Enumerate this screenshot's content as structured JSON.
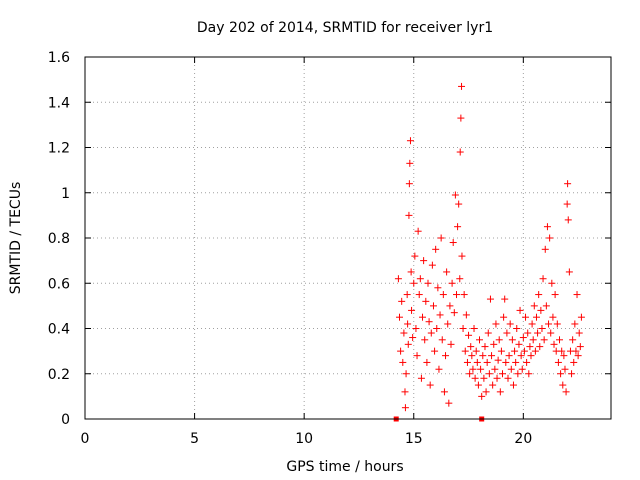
{
  "chart_data": {
    "type": "scatter",
    "title": "Day 202 of 2014, SRMTID for receiver lyr1",
    "xlabel": "GPS time / hours",
    "ylabel": "SRMTID / TECUs",
    "xlim": [
      0,
      24
    ],
    "ylim": [
      0,
      1.6
    ],
    "xticks": [
      "0",
      "5",
      "10",
      "15",
      "20"
    ],
    "yticks": [
      "0",
      "0.2",
      "0.4",
      "0.6",
      "0.8",
      "1",
      "1.2",
      "1.4",
      "1.6"
    ],
    "grid": true,
    "marker": "+",
    "color": "#ff0000",
    "gap_markers_x": [
      14.2,
      18.1
    ],
    "series": [
      {
        "name": "SRMTID",
        "points": [
          [
            14.3,
            0.62
          ],
          [
            14.35,
            0.45
          ],
          [
            14.4,
            0.3
          ],
          [
            14.45,
            0.52
          ],
          [
            14.5,
            0.25
          ],
          [
            14.55,
            0.38
          ],
          [
            14.6,
            0.12
          ],
          [
            14.62,
            0.05
          ],
          [
            14.65,
            0.2
          ],
          [
            14.7,
            0.55
          ],
          [
            14.72,
            0.42
          ],
          [
            14.75,
            0.33
          ],
          [
            14.78,
            0.9
          ],
          [
            14.8,
            1.04
          ],
          [
            14.82,
            1.13
          ],
          [
            14.85,
            1.23
          ],
          [
            14.88,
            0.65
          ],
          [
            14.9,
            0.48
          ],
          [
            14.95,
            0.36
          ],
          [
            15.0,
            0.6
          ],
          [
            15.05,
            0.72
          ],
          [
            15.1,
            0.4
          ],
          [
            15.15,
            0.28
          ],
          [
            15.2,
            0.83
          ],
          [
            15.25,
            0.55
          ],
          [
            15.3,
            0.62
          ],
          [
            15.35,
            0.18
          ],
          [
            15.4,
            0.45
          ],
          [
            15.45,
            0.7
          ],
          [
            15.5,
            0.35
          ],
          [
            15.55,
            0.52
          ],
          [
            15.6,
            0.25
          ],
          [
            15.65,
            0.6
          ],
          [
            15.7,
            0.43
          ],
          [
            15.75,
            0.15
          ],
          [
            15.8,
            0.38
          ],
          [
            15.85,
            0.68
          ],
          [
            15.9,
            0.5
          ],
          [
            15.95,
            0.3
          ],
          [
            16.0,
            0.75
          ],
          [
            16.05,
            0.4
          ],
          [
            16.1,
            0.58
          ],
          [
            16.15,
            0.22
          ],
          [
            16.2,
            0.46
          ],
          [
            16.25,
            0.8
          ],
          [
            16.3,
            0.35
          ],
          [
            16.35,
            0.55
          ],
          [
            16.4,
            0.12
          ],
          [
            16.45,
            0.28
          ],
          [
            16.5,
            0.65
          ],
          [
            16.55,
            0.42
          ],
          [
            16.6,
            0.07
          ],
          [
            16.65,
            0.5
          ],
          [
            16.7,
            0.33
          ],
          [
            16.75,
            0.6
          ],
          [
            16.8,
            0.78
          ],
          [
            16.85,
            0.47
          ],
          [
            16.9,
            0.99
          ],
          [
            16.95,
            0.55
          ],
          [
            17.0,
            0.85
          ],
          [
            17.05,
            0.95
          ],
          [
            17.1,
            0.62
          ],
          [
            17.12,
            1.18
          ],
          [
            17.15,
            1.33
          ],
          [
            17.18,
            1.47
          ],
          [
            17.2,
            0.72
          ],
          [
            17.25,
            0.4
          ],
          [
            17.3,
            0.55
          ],
          [
            17.35,
            0.3
          ],
          [
            17.4,
            0.46
          ],
          [
            17.45,
            0.25
          ],
          [
            17.5,
            0.37
          ],
          [
            17.55,
            0.2
          ],
          [
            17.6,
            0.32
          ],
          [
            17.65,
            0.28
          ],
          [
            17.7,
            0.22
          ],
          [
            17.75,
            0.4
          ],
          [
            17.8,
            0.18
          ],
          [
            17.85,
            0.3
          ],
          [
            17.9,
            0.25
          ],
          [
            17.95,
            0.15
          ],
          [
            18.0,
            0.35
          ],
          [
            18.05,
            0.22
          ],
          [
            18.1,
            0.1
          ],
          [
            18.15,
            0.28
          ],
          [
            18.2,
            0.18
          ],
          [
            18.25,
            0.32
          ],
          [
            18.3,
            0.12
          ],
          [
            18.35,
            0.25
          ],
          [
            18.4,
            0.38
          ],
          [
            18.45,
            0.2
          ],
          [
            18.5,
            0.53
          ],
          [
            18.55,
            0.28
          ],
          [
            18.6,
            0.15
          ],
          [
            18.65,
            0.33
          ],
          [
            18.7,
            0.22
          ],
          [
            18.75,
            0.42
          ],
          [
            18.8,
            0.18
          ],
          [
            18.85,
            0.26
          ],
          [
            18.9,
            0.35
          ],
          [
            18.95,
            0.12
          ],
          [
            19.0,
            0.3
          ],
          [
            19.05,
            0.2
          ],
          [
            19.1,
            0.45
          ],
          [
            19.15,
            0.53
          ],
          [
            19.2,
            0.25
          ],
          [
            19.25,
            0.38
          ],
          [
            19.3,
            0.18
          ],
          [
            19.35,
            0.28
          ],
          [
            19.4,
            0.42
          ],
          [
            19.45,
            0.22
          ],
          [
            19.5,
            0.35
          ],
          [
            19.55,
            0.15
          ],
          [
            19.6,
            0.3
          ],
          [
            19.65,
            0.25
          ],
          [
            19.7,
            0.4
          ],
          [
            19.75,
            0.2
          ],
          [
            19.8,
            0.33
          ],
          [
            19.85,
            0.48
          ],
          [
            19.9,
            0.28
          ],
          [
            19.95,
            0.22
          ],
          [
            20.0,
            0.36
          ],
          [
            20.05,
            0.3
          ],
          [
            20.1,
            0.45
          ],
          [
            20.15,
            0.25
          ],
          [
            20.2,
            0.38
          ],
          [
            20.25,
            0.2
          ],
          [
            20.3,
            0.32
          ],
          [
            20.35,
            0.28
          ],
          [
            20.4,
            0.42
          ],
          [
            20.45,
            0.35
          ],
          [
            20.5,
            0.5
          ],
          [
            20.55,
            0.3
          ],
          [
            20.6,
            0.45
          ],
          [
            20.65,
            0.38
          ],
          [
            20.7,
            0.55
          ],
          [
            20.75,
            0.32
          ],
          [
            20.8,
            0.48
          ],
          [
            20.85,
            0.4
          ],
          [
            20.9,
            0.62
          ],
          [
            20.95,
            0.35
          ],
          [
            21.0,
            0.75
          ],
          [
            21.05,
            0.5
          ],
          [
            21.1,
            0.85
          ],
          [
            21.15,
            0.42
          ],
          [
            21.2,
            0.8
          ],
          [
            21.25,
            0.38
          ],
          [
            21.3,
            0.6
          ],
          [
            21.35,
            0.45
          ],
          [
            21.4,
            0.33
          ],
          [
            21.45,
            0.55
          ],
          [
            21.5,
            0.3
          ],
          [
            21.55,
            0.42
          ],
          [
            21.6,
            0.25
          ],
          [
            21.65,
            0.35
          ],
          [
            21.7,
            0.2
          ],
          [
            21.75,
            0.3
          ],
          [
            21.8,
            0.15
          ],
          [
            21.85,
            0.28
          ],
          [
            21.9,
            0.22
          ],
          [
            21.95,
            0.12
          ],
          [
            22.0,
            0.95
          ],
          [
            22.02,
            1.04
          ],
          [
            22.05,
            0.88
          ],
          [
            22.1,
            0.65
          ],
          [
            22.15,
            0.3
          ],
          [
            22.2,
            0.2
          ],
          [
            22.25,
            0.35
          ],
          [
            22.3,
            0.25
          ],
          [
            22.35,
            0.42
          ],
          [
            22.4,
            0.3
          ],
          [
            22.45,
            0.55
          ],
          [
            22.5,
            0.28
          ],
          [
            22.55,
            0.38
          ],
          [
            22.6,
            0.32
          ],
          [
            22.65,
            0.45
          ]
        ]
      }
    ]
  }
}
